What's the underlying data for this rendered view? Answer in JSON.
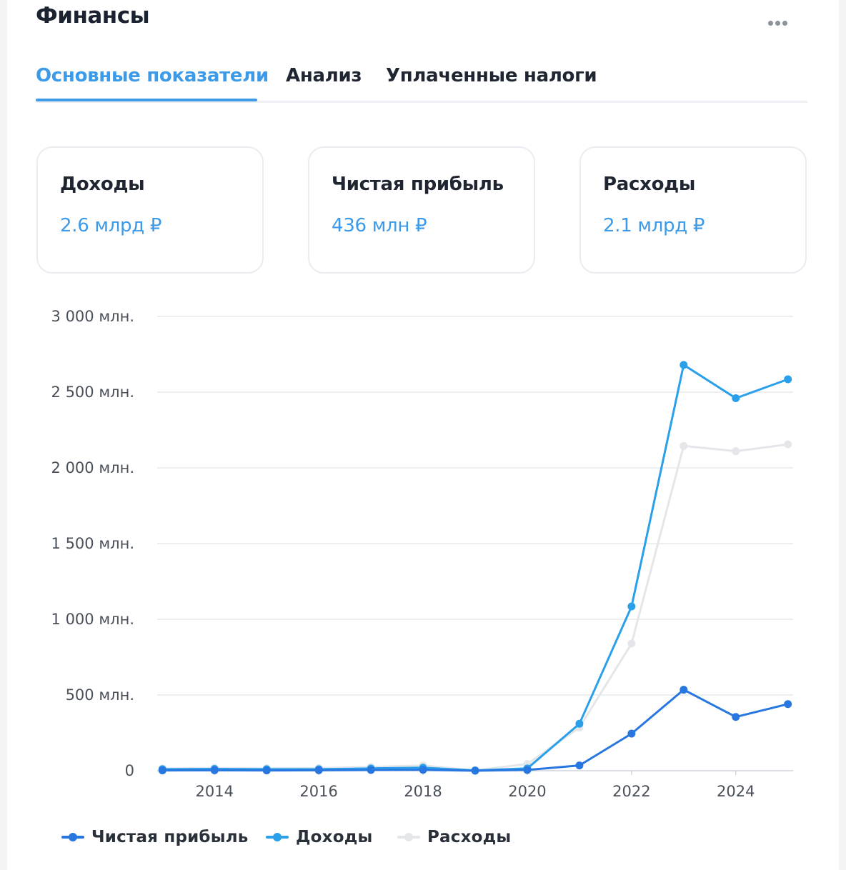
{
  "header": {
    "title": "Финансы",
    "more_icon": "more-horizontal-icon"
  },
  "tabs": [
    {
      "label": "Основные показатели",
      "active": true
    },
    {
      "label": "Анализ",
      "active": false
    },
    {
      "label": "Уплаченные налоги",
      "active": false
    }
  ],
  "cards": [
    {
      "label": "Доходы",
      "value": "2.6 млрд ₽"
    },
    {
      "label": "Чистая прибыль",
      "value": "436 млн ₽"
    },
    {
      "label": "Расходы",
      "value": "2.1 млрд ₽"
    }
  ],
  "colors": {
    "accent": "#3d9ae8",
    "profit": "#2877e0",
    "income": "#2aa0ea",
    "expenses": "#e4e6ea",
    "grid": "#e6e8ec"
  },
  "chart_data": {
    "type": "line",
    "x": [
      2013,
      2014,
      2015,
      2016,
      2017,
      2018,
      2019,
      2020,
      2021,
      2022,
      2023,
      2024,
      2025
    ],
    "x_ticks": [
      2014,
      2016,
      2018,
      2020,
      2022,
      2024
    ],
    "x_tick_labels": [
      "2014",
      "2016",
      "2018",
      "2020",
      "2022",
      "2024"
    ],
    "y_ticks": [
      0,
      500,
      1000,
      1500,
      2000,
      2500,
      3000
    ],
    "y_tick_labels": [
      "0",
      "500 млн.",
      "1 000 млн.",
      "1 500 млн.",
      "2 000 млн.",
      "2 500 млн.",
      "3 000 млн."
    ],
    "ylim": [
      0,
      3000
    ],
    "xlim": [
      2012.9,
      2025.1
    ],
    "grid": true,
    "legend_position": "bottom-left",
    "series": [
      {
        "name": "Расходы",
        "color": "#e4e6ea",
        "values": [
          15,
          18,
          16,
          17,
          25,
          35,
          2,
          45,
          285,
          840,
          2145,
          2110,
          2155
        ]
      },
      {
        "name": "Доходы",
        "color": "#2aa0ea",
        "values": [
          10,
          12,
          10,
          10,
          15,
          20,
          2,
          15,
          310,
          1085,
          2680,
          2460,
          2585
        ]
      },
      {
        "name": "Чистая прибыль",
        "color": "#2877e0",
        "values": [
          2,
          3,
          2,
          3,
          5,
          6,
          0,
          5,
          35,
          245,
          535,
          355,
          440
        ]
      }
    ],
    "legend_order": [
      "Чистая прибыль",
      "Доходы",
      "Расходы"
    ]
  }
}
